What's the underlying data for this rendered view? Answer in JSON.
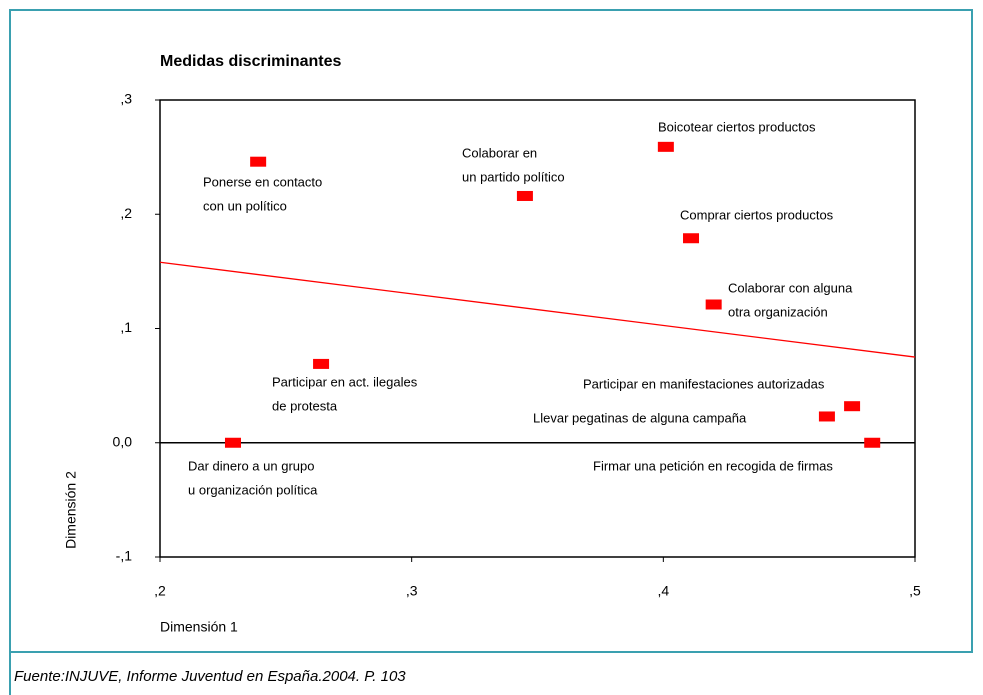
{
  "chart_data": {
    "type": "scatter",
    "title": "Medidas discriminantes",
    "x_label": "Dimensión 1",
    "y_label": "Dimensión 2",
    "xlim": [
      0.2,
      0.5
    ],
    "ylim": [
      -0.1,
      0.3
    ],
    "xticks": [
      {
        "value": 0.2,
        "label": ",2"
      },
      {
        "value": 0.3,
        "label": ",3"
      },
      {
        "value": 0.4,
        "label": ",4"
      },
      {
        "value": 0.5,
        "label": ",5"
      }
    ],
    "yticks": [
      {
        "value": -0.1,
        "label": "-,1"
      },
      {
        "value": 0,
        "label": "0,0"
      },
      {
        "value": 0.1,
        "label": ",1"
      },
      {
        "value": 0.2,
        "label": ",2"
      },
      {
        "value": 0.3,
        "label": ",3"
      }
    ],
    "color": "#ff0000",
    "x": [
      0.239,
      0.345,
      0.401,
      0.411,
      0.42,
      0.264,
      0.475,
      0.465,
      0.483,
      0.229
    ],
    "values": [
      0.246,
      0.216,
      0.259,
      0.179,
      0.121,
      0.069,
      0.032,
      0.023,
      0,
      0
    ],
    "labels": [
      [
        "Ponerse en contacto",
        "con un político"
      ],
      [
        "Colaborar en",
        "un partido político"
      ],
      [
        "Boicotear ciertos productos"
      ],
      [
        "Comprar ciertos productos"
      ],
      [
        "Colaborar con alguna",
        "otra organización"
      ],
      [
        "Participar en act. ilegales",
        "de protesta"
      ],
      [
        "Participar en manifestaciones autorizadas"
      ],
      [
        "Llevar pegatinas de alguna campaña"
      ],
      [
        "Firmar una petición en recogida de firmas"
      ],
      [
        "Dar dinero a un grupo",
        "u organización política"
      ]
    ],
    "fit_line": {
      "x": [
        0.2,
        0.5
      ],
      "y": [
        0.158,
        0.075
      ],
      "color": "#ff0000"
    },
    "reference_line": {
      "y": 0,
      "color": "#000000"
    }
  },
  "source": "Fuente:INJUVE, Informe Juventud en España.2004. P. 103"
}
